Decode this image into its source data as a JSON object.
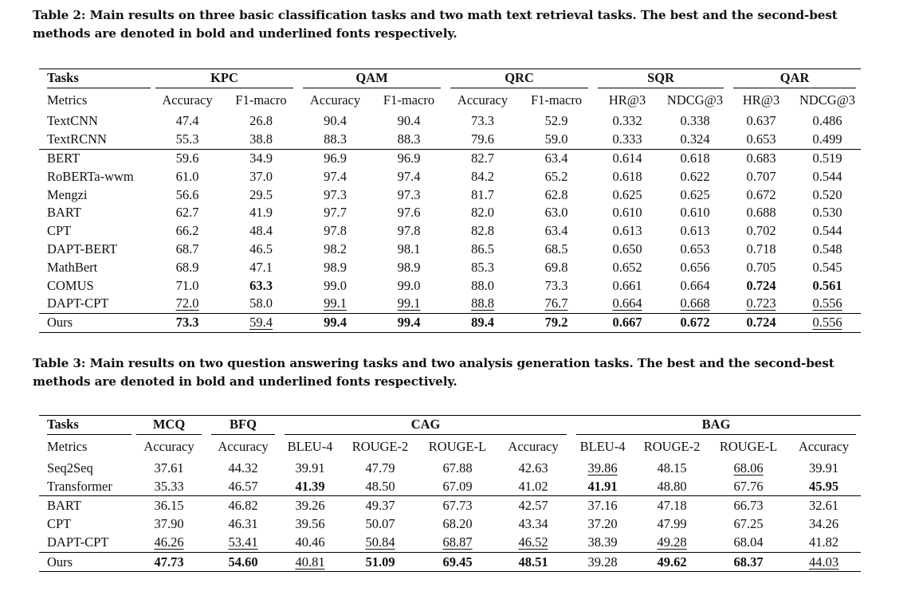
{
  "table2": {
    "caption": "Table 2: Main results on three basic classification tasks and two math text retrieval tasks. The best and the second-best methods are denoted in bold and underlined fonts respectively.",
    "tasks_label": "Tasks",
    "metrics_label": "Metrics",
    "groups": [
      "KPC",
      "QAM",
      "QRC",
      "SQR",
      "QAR"
    ],
    "metrics": [
      "Accuracy",
      "F1-macro",
      "Accuracy",
      "F1-macro",
      "Accuracy",
      "F1-macro",
      "HR@3",
      "NDCG@3",
      "HR@3",
      "NDCG@3"
    ],
    "rows": [
      {
        "name": "TextCNN",
        "values": [
          "47.4",
          "26.8",
          "90.4",
          "90.4",
          "73.3",
          "52.9",
          "0.332",
          "0.338",
          "0.637",
          "0.486"
        ],
        "bold": [],
        "underline": []
      },
      {
        "name": "TextRCNN",
        "values": [
          "55.3",
          "38.8",
          "88.3",
          "88.3",
          "79.6",
          "59.0",
          "0.333",
          "0.324",
          "0.653",
          "0.499"
        ],
        "bold": [],
        "underline": []
      },
      {
        "name": "BERT",
        "values": [
          "59.6",
          "34.9",
          "96.9",
          "96.9",
          "82.7",
          "63.4",
          "0.614",
          "0.618",
          "0.683",
          "0.519"
        ],
        "bold": [],
        "underline": []
      },
      {
        "name": "RoBERTa-wwm",
        "values": [
          "61.0",
          "37.0",
          "97.4",
          "97.4",
          "84.2",
          "65.2",
          "0.618",
          "0.622",
          "0.707",
          "0.544"
        ],
        "bold": [],
        "underline": []
      },
      {
        "name": "Mengzi",
        "values": [
          "56.6",
          "29.5",
          "97.3",
          "97.3",
          "81.7",
          "62.8",
          "0.625",
          "0.625",
          "0.672",
          "0.520"
        ],
        "bold": [],
        "underline": []
      },
      {
        "name": "BART",
        "values": [
          "62.7",
          "41.9",
          "97.7",
          "97.6",
          "82.0",
          "63.0",
          "0.610",
          "0.610",
          "0.688",
          "0.530"
        ],
        "bold": [],
        "underline": []
      },
      {
        "name": "CPT",
        "values": [
          "66.2",
          "48.4",
          "97.8",
          "97.8",
          "82.8",
          "63.4",
          "0.613",
          "0.613",
          "0.702",
          "0.544"
        ],
        "bold": [],
        "underline": []
      },
      {
        "name": "DAPT-BERT",
        "values": [
          "68.7",
          "46.5",
          "98.2",
          "98.1",
          "86.5",
          "68.5",
          "0.650",
          "0.653",
          "0.718",
          "0.548"
        ],
        "bold": [],
        "underline": []
      },
      {
        "name": "MathBert",
        "values": [
          "68.9",
          "47.1",
          "98.9",
          "98.9",
          "85.3",
          "69.8",
          "0.652",
          "0.656",
          "0.705",
          "0.545"
        ],
        "bold": [],
        "underline": []
      },
      {
        "name": "COMUS",
        "values": [
          "71.0",
          "63.3",
          "99.0",
          "99.0",
          "88.0",
          "73.3",
          "0.661",
          "0.664",
          "0.724",
          "0.561"
        ],
        "bold": [
          1,
          8,
          9
        ],
        "underline": []
      },
      {
        "name": "DAPT-CPT",
        "values": [
          "72.0",
          "58.0",
          "99.1",
          "99.1",
          "88.8",
          "76.7",
          "0.664",
          "0.668",
          "0.723",
          "0.556"
        ],
        "bold": [],
        "underline": [
          0,
          2,
          3,
          4,
          5,
          6,
          7,
          8,
          9
        ]
      },
      {
        "name": "Ours",
        "values": [
          "73.3",
          "59.4",
          "99.4",
          "99.4",
          "89.4",
          "79.2",
          "0.667",
          "0.672",
          "0.724",
          "0.556"
        ],
        "bold": [
          0,
          2,
          3,
          4,
          5,
          6,
          7,
          8
        ],
        "underline": [
          1,
          9
        ]
      }
    ],
    "separators_before": [
      2,
      11
    ]
  },
  "table3": {
    "caption": "Table 3: Main results on two question answering tasks and two analysis generation tasks. The best and the second-best methods are denoted in bold and underlined fonts respectively.",
    "tasks_label": "Tasks",
    "metrics_label": "Metrics",
    "groups": [
      {
        "name": "MCQ",
        "span": 1
      },
      {
        "name": "BFQ",
        "span": 1
      },
      {
        "name": "CAG",
        "span": 4
      },
      {
        "name": "BAG",
        "span": 4
      }
    ],
    "metrics": [
      "Accuracy",
      "Accuracy",
      "BLEU-4",
      "ROUGE-2",
      "ROUGE-L",
      "Accuracy",
      "BLEU-4",
      "ROUGE-2",
      "ROUGE-L",
      "Accuracy"
    ],
    "rows": [
      {
        "name": "Seq2Seq",
        "values": [
          "37.61",
          "44.32",
          "39.91",
          "47.79",
          "67.88",
          "42.63",
          "39.86",
          "48.15",
          "68.06",
          "39.91"
        ],
        "bold": [],
        "underline": [
          6,
          8
        ]
      },
      {
        "name": "Transformer",
        "values": [
          "35.33",
          "46.57",
          "41.39",
          "48.50",
          "67.09",
          "41.02",
          "41.91",
          "48.80",
          "67.76",
          "45.95"
        ],
        "bold": [
          2,
          6,
          9
        ],
        "underline": []
      },
      {
        "name": "BART",
        "values": [
          "36.15",
          "46.82",
          "39.26",
          "49.37",
          "67.73",
          "42.57",
          "37.16",
          "47.18",
          "66.73",
          "32.61"
        ],
        "bold": [],
        "underline": []
      },
      {
        "name": "CPT",
        "values": [
          "37.90",
          "46.31",
          "39.56",
          "50.07",
          "68.20",
          "43.34",
          "37.20",
          "47.99",
          "67.25",
          "34.26"
        ],
        "bold": [],
        "underline": []
      },
      {
        "name": "DAPT-CPT",
        "values": [
          "46.26",
          "53.41",
          "40.46",
          "50.84",
          "68.87",
          "46.52",
          "38.39",
          "49.28",
          "68.04",
          "41.82"
        ],
        "bold": [],
        "underline": [
          0,
          1,
          3,
          4,
          5,
          7
        ]
      },
      {
        "name": "Ours",
        "values": [
          "47.73",
          "54.60",
          "40.81",
          "51.09",
          "69.45",
          "48.51",
          "39.28",
          "49.62",
          "68.37",
          "44.03"
        ],
        "bold": [
          0,
          1,
          3,
          4,
          5,
          7,
          8
        ],
        "underline": [
          2,
          9
        ]
      }
    ],
    "separators_before": [
      2,
      5
    ]
  }
}
